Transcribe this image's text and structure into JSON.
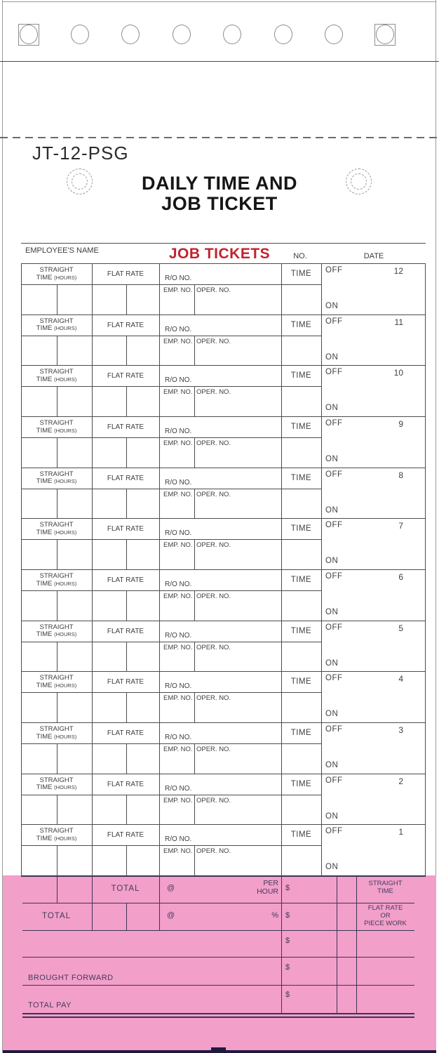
{
  "page": {
    "product_code": "JT-12-PSG"
  },
  "title": {
    "line1": "DAILY TIME AND",
    "line2": "JOB TICKET"
  },
  "header": {
    "employee_name": "EMPLOYEE'S NAME",
    "job_tickets": "JOB TICKETS",
    "no": "NO.",
    "date": "DATE"
  },
  "block_labels": {
    "straight_line1": "STRAIGHT",
    "straight_line2": "TIME",
    "straight_line2_small": "(HOURS)",
    "flat_rate": "FLAT RATE",
    "ro_no": "R/O NO.",
    "emp_no": "EMP. NO.",
    "oper_no": "OPER. NO.",
    "time": "TIME",
    "off": "OFF",
    "on": "ON"
  },
  "ticket_numbers": [
    "12",
    "11",
    "10",
    "9",
    "8",
    "7",
    "6",
    "5",
    "4",
    "3",
    "2",
    "1"
  ],
  "totals": {
    "row1": {
      "label": "TOTAL",
      "at": "@",
      "rate_line1": "PER",
      "rate_line2": "HOUR",
      "currency": "$",
      "category_line1": "STRAIGHT",
      "category_line2": "TIME"
    },
    "row2": {
      "label": "TOTAL",
      "at": "@",
      "percent": "%",
      "currency": "$",
      "category_line1": "FLAT RATE",
      "category_line2": "OR",
      "category_line3": "PIECE WORK"
    },
    "row3": {
      "currency": "$"
    },
    "row4": {
      "label": "BROUGHT FORWARD",
      "currency": "$"
    },
    "row5": {
      "label": "TOTAL PAY",
      "currency": "$"
    }
  },
  "colors": {
    "pink": "#f29fc9",
    "pink_line": "#3d3456",
    "red": "#c1232e",
    "navy_bar": "#201a3e",
    "table_line": "#4c4c4c"
  }
}
